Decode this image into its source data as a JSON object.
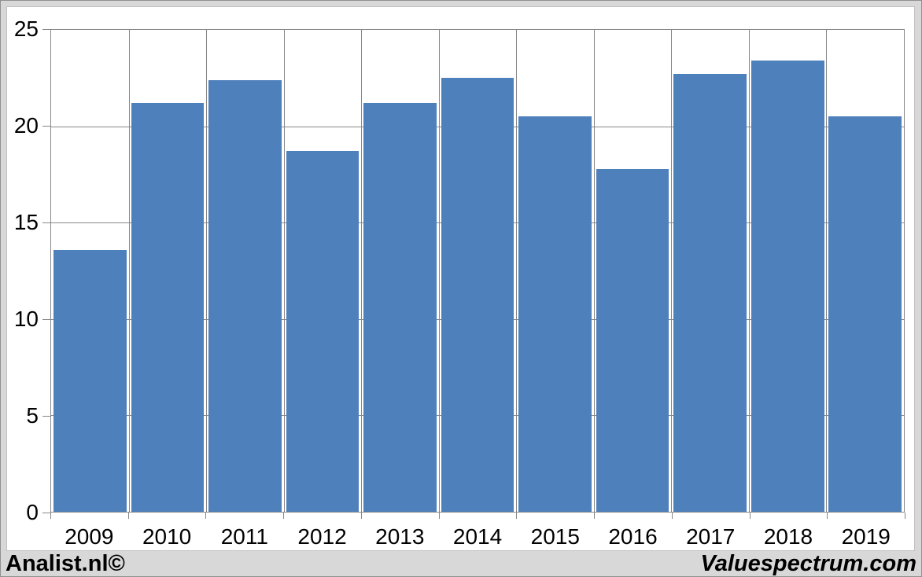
{
  "footer": {
    "left": "Analist.nl©",
    "right": "Valuespectrum.com"
  },
  "colors": {
    "bar": "#4e80bc",
    "gridline": "#878787",
    "plot_border": "#878787",
    "frame_background": "#d8d8d8",
    "panel_background": "#ffffff",
    "text": "#000000"
  },
  "chart_data": {
    "type": "bar",
    "title": "",
    "xlabel": "",
    "ylabel": "",
    "categories": [
      "2009",
      "2010",
      "2011",
      "2012",
      "2013",
      "2014",
      "2015",
      "2016",
      "2017",
      "2018",
      "2019"
    ],
    "values": [
      13.6,
      21.2,
      22.4,
      18.7,
      21.2,
      22.5,
      20.5,
      17.8,
      22.7,
      23.4,
      20.5
    ],
    "ylim": [
      0,
      25
    ],
    "yticks": [
      0,
      5,
      10,
      15,
      20,
      25
    ],
    "grid": true,
    "vertical_gridlines": true,
    "legend": "none",
    "bar_color": "#4e80bc"
  }
}
